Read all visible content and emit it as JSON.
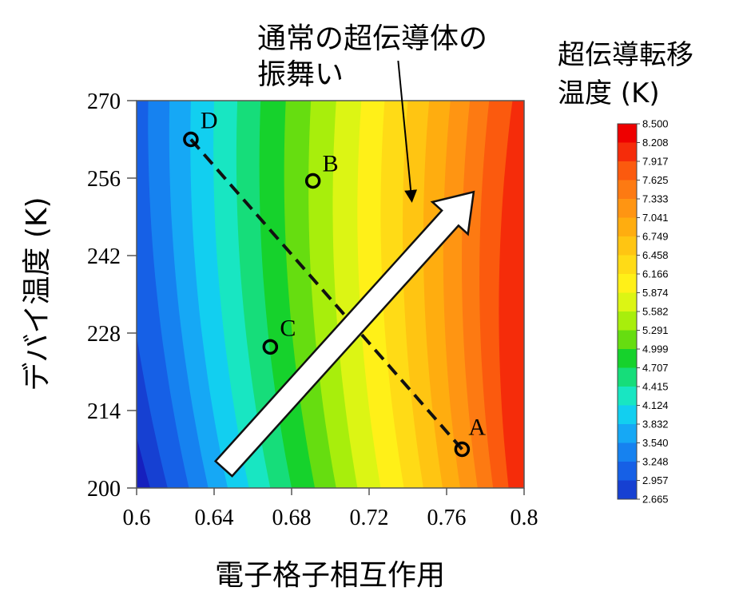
{
  "chart_data": {
    "type": "heatmap",
    "title_lines": [
      "通常の超伝導体の",
      "振舞い"
    ],
    "xlabel": "電子格子相互作用",
    "ylabel": "デバイ温度 (K)",
    "xlim": [
      0.6,
      0.8
    ],
    "ylim": [
      200,
      270
    ],
    "x_ticks": [
      "0.6",
      "0.64",
      "0.68",
      "0.72",
      "0.76",
      "0.8"
    ],
    "y_ticks": [
      "270",
      "256",
      "242",
      "228",
      "214",
      "200"
    ],
    "colorbar": {
      "title_lines": [
        "超伝導転移",
        "温度 (K)"
      ],
      "levels": [
        "8.500",
        "8.208",
        "7.917",
        "7.625",
        "7.333",
        "7.041",
        "6.749",
        "6.458",
        "6.166",
        "5.874",
        "5.582",
        "5.291",
        "4.999",
        "4.707",
        "4.415",
        "4.124",
        "3.832",
        "3.540",
        "3.248",
        "2.957",
        "2.665"
      ],
      "colors": [
        "#ee0000",
        "#f52c0a",
        "#fb5a0e",
        "#fd7a12",
        "#ff9512",
        "#ffad0f",
        "#ffc512",
        "#ffdb16",
        "#fff018",
        "#dcf514",
        "#a8ee0c",
        "#66dd10",
        "#16d22c",
        "#16dd7a",
        "#18e6c2",
        "#12cff0",
        "#16a8f5",
        "#1682f0",
        "#1660e6",
        "#1640d2",
        "#1620be"
      ]
    },
    "points": [
      {
        "label": "A",
        "x": 0.768,
        "y": 207
      },
      {
        "label": "B",
        "x": 0.691,
        "y": 255.5
      },
      {
        "label": "C",
        "x": 0.669,
        "y": 225.5
      },
      {
        "label": "D",
        "x": 0.628,
        "y": 263
      }
    ],
    "dashed_line": {
      "from": "D",
      "to": "A"
    },
    "arrow": {
      "from": [
        0.645,
        203.5
      ],
      "to": [
        0.774,
        253.5
      ]
    },
    "annotation_arrow": {
      "from": [
        0.735,
        263.5
      ],
      "to": [
        0.742,
        252
      ]
    },
    "contour": {
      "note_levels": "bands are ordered from lowest (index 0) to highest Tc",
      "band_boundaries_at_bottom_y200": [
        0.6,
        0.607,
        0.616,
        0.627,
        0.637,
        0.647,
        0.658,
        0.669,
        0.68,
        0.692,
        0.703,
        0.714,
        0.726,
        0.738,
        0.748,
        0.758,
        0.767,
        0.776,
        0.784,
        0.792
      ],
      "band_boundaries_at_top_y270": [
        0.56,
        0.575,
        0.59,
        0.606,
        0.617,
        0.628,
        0.64,
        0.652,
        0.664,
        0.677,
        0.69,
        0.703,
        0.716,
        0.728,
        0.74,
        0.751,
        0.762,
        0.772,
        0.782,
        0.794
      ]
    }
  }
}
